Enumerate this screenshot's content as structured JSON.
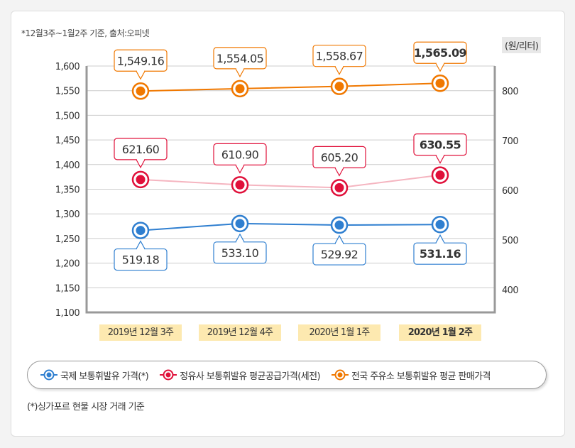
{
  "note_top": "*12월3주~1월2주 기준, 출처:오피넷",
  "unit": "(원/리터)",
  "note_bottom": "(*)싱가포르 현물 시장 거래 기준",
  "chart_data": {
    "type": "line",
    "categories": [
      "2019년 12월 3주",
      "2019년 12월 4주",
      "2020년 1월 1주",
      "2020년 1월 2주"
    ],
    "left_axis": {
      "ylim": [
        1100,
        1600
      ],
      "ticks": [
        "1,100",
        "1,150",
        "1,200",
        "1,250",
        "1,300",
        "1,350",
        "1,400",
        "1,450",
        "1,500",
        "1,550",
        "1,600"
      ]
    },
    "right_axis": {
      "ticks": [
        "400",
        "500",
        "600",
        "700",
        "800"
      ],
      "ylim": [
        350,
        850
      ]
    },
    "series": [
      {
        "name": "국제 보통휘발유 가격(*)",
        "axis": "right",
        "color": "#2f7fd0",
        "values": [
          519.18,
          533.1,
          529.92,
          531.16
        ],
        "labels": [
          "519.18",
          "533.10",
          "529.92",
          "531.16"
        ]
      },
      {
        "name": "정유사 보통휘발유 평균공급가격(세전)",
        "axis": "right",
        "color": "#e0103a",
        "line_color": "#f5b5c0",
        "values": [
          621.6,
          610.9,
          605.2,
          630.55
        ],
        "labels": [
          "621.60",
          "610.90",
          "605.20",
          "630.55"
        ]
      },
      {
        "name": "전국 주유소 보통휘발유 평균 판매가격",
        "axis": "left",
        "color": "#f07800",
        "values": [
          1549.16,
          1554.05,
          1558.67,
          1565.09
        ],
        "labels": [
          "1,549.16",
          "1,554.05",
          "1,558.67",
          "1,565.09"
        ]
      }
    ]
  }
}
